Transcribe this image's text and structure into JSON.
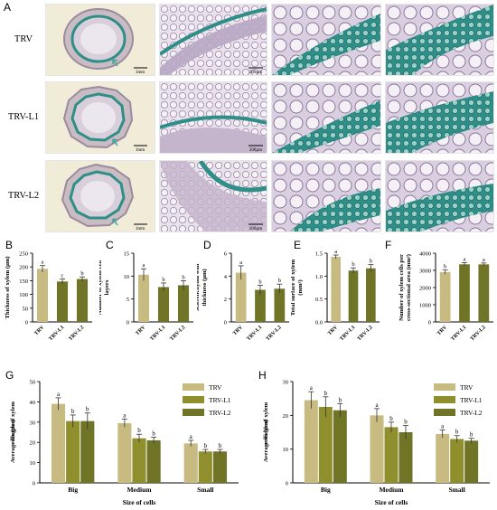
{
  "figure_panel_letters": {
    "a": "A",
    "b": "B",
    "c": "C",
    "d": "D",
    "e": "E",
    "f": "F",
    "g": "G",
    "h": "H"
  },
  "micrographs": {
    "rows": [
      {
        "label": "TRV"
      },
      {
        "label": "TRV-L1"
      },
      {
        "label": "TRV-L2"
      }
    ],
    "scale_bar_1": "1mm",
    "scale_bar_2": "200µm",
    "colors": {
      "background": "#f1ecd8",
      "tissue": "#c7b8c8",
      "xylem": "#2f8f88",
      "cell": "#ece6ef"
    }
  },
  "chart_data": [
    {
      "panel": "B",
      "type": "bar",
      "categories": [
        "TRV",
        "TRV-L1",
        "TRV-L2"
      ],
      "values": [
        193,
        147,
        156
      ],
      "errors": [
        12,
        9,
        8
      ],
      "letters": [
        "a",
        "c",
        "b"
      ],
      "ylabel": "Thickness of xylem (μm)",
      "ylim": [
        0,
        250
      ],
      "yticks": [
        "0",
        "50",
        "100",
        "150",
        "200",
        "250"
      ],
      "colors": [
        "#c8bb82",
        "#6f7427",
        "#6f7427"
      ]
    },
    {
      "panel": "C",
      "type": "bar",
      "categories": [
        "TRV",
        "TRV-L1",
        "TRV-L2"
      ],
      "values": [
        10.3,
        7.6,
        8.0
      ],
      "errors": [
        1.3,
        0.9,
        1.0
      ],
      "letters": [
        "a",
        "b",
        "b"
      ],
      "ylabel": "Number of xylem cell layers",
      "ylim": [
        0,
        15
      ],
      "yticks": [
        "0",
        "5",
        "10",
        "15"
      ],
      "colors": [
        "#c8bb82",
        "#6f7427",
        "#6f7427"
      ]
    },
    {
      "panel": "D",
      "type": "bar",
      "categories": [
        "TRV",
        "TRV-L1",
        "TRV-L2"
      ],
      "values": [
        4.3,
        2.8,
        2.9
      ],
      "errors": [
        0.6,
        0.4,
        0.4
      ],
      "letters": [
        "a",
        "b",
        "b"
      ],
      "ylabel": "Sclerenchyma wall thickness (μm)",
      "ylim": [
        0,
        6
      ],
      "yticks": [
        "0",
        "2",
        "4",
        "6"
      ],
      "colors": [
        "#c8bb82",
        "#6f7427",
        "#6f7427"
      ]
    },
    {
      "panel": "E",
      "type": "bar",
      "categories": [
        "TRV",
        "TRV-L1",
        "TRV-L2"
      ],
      "values": [
        1.42,
        1.12,
        1.17
      ],
      "errors": [
        0.04,
        0.06,
        0.08
      ],
      "letters": [
        "a",
        "b",
        "b"
      ],
      "ylabel": "Total surface of xylem (mm²)",
      "ylim": [
        0,
        1.5
      ],
      "yticks": [
        "0.0",
        "0.5",
        "1.0",
        "1.5"
      ],
      "colors": [
        "#c8bb82",
        "#6f7427",
        "#6f7427"
      ]
    },
    {
      "panel": "F",
      "type": "bar",
      "categories": [
        "TRV",
        "TRV-L1",
        "TRV-L2"
      ],
      "values": [
        2900,
        3350,
        3350
      ],
      "errors": [
        120,
        100,
        80
      ],
      "letters": [
        "b",
        "a",
        "a"
      ],
      "ylabel": "Number of xylem cells per cross-sectional area (mm²)",
      "ylim": [
        0,
        4000
      ],
      "yticks": [
        "0",
        "1000",
        "2000",
        "3000",
        "4000"
      ],
      "colors": [
        "#c8bb82",
        "#6f7427",
        "#6f7427"
      ]
    },
    {
      "panel": "G",
      "type": "bar",
      "categories": [
        "Big",
        "Medium",
        "Small"
      ],
      "series": [
        {
          "name": "TRV",
          "values": [
            39,
            29.5,
            19.5
          ],
          "errors": [
            3,
            2,
            1.5
          ],
          "letters": [
            "a",
            "a",
            "a"
          ]
        },
        {
          "name": "TRV-L1",
          "values": [
            30.5,
            22,
            15.5
          ],
          "errors": [
            3,
            2,
            1
          ],
          "letters": [
            "b",
            "b",
            "b"
          ]
        },
        {
          "name": "TRV-L2",
          "values": [
            30.5,
            21,
            15.5
          ],
          "errors": [
            4,
            1.5,
            1
          ],
          "letters": [
            "b",
            "b",
            "b"
          ]
        }
      ],
      "ylabel": "Average length of xylem cells (μm)",
      "xlabel": "Size of cells",
      "ylim": [
        0,
        50
      ],
      "yticks": [
        "0",
        "10",
        "20",
        "30",
        "40",
        "50"
      ],
      "legend": "top-right",
      "colors": [
        "#c8bb82",
        "#8f8f2e",
        "#6f7427"
      ]
    },
    {
      "panel": "H",
      "type": "bar",
      "categories": [
        "Big",
        "Medium",
        "Small"
      ],
      "series": [
        {
          "name": "TRV",
          "values": [
            24.5,
            20,
            14.5
          ],
          "errors": [
            2.5,
            2,
            1.2
          ],
          "letters": [
            "a",
            "a",
            "a"
          ]
        },
        {
          "name": "TRV-L1",
          "values": [
            22.5,
            16.5,
            13
          ],
          "errors": [
            3,
            1.5,
            1
          ],
          "letters": [
            "b",
            "b",
            "b"
          ]
        },
        {
          "name": "TRV-L2",
          "values": [
            21.5,
            15,
            12.5
          ],
          "errors": [
            2,
            2,
            0.7
          ],
          "letters": [
            "b",
            "b",
            "b"
          ]
        }
      ],
      "ylabel": "Average width of xylem cells (μm)",
      "xlabel": "Size of cells",
      "ylim": [
        0,
        30
      ],
      "yticks": [
        "0",
        "10",
        "20",
        "30"
      ],
      "legend": "top-right",
      "colors": [
        "#c8bb82",
        "#8f8f2e",
        "#6f7427"
      ]
    }
  ]
}
